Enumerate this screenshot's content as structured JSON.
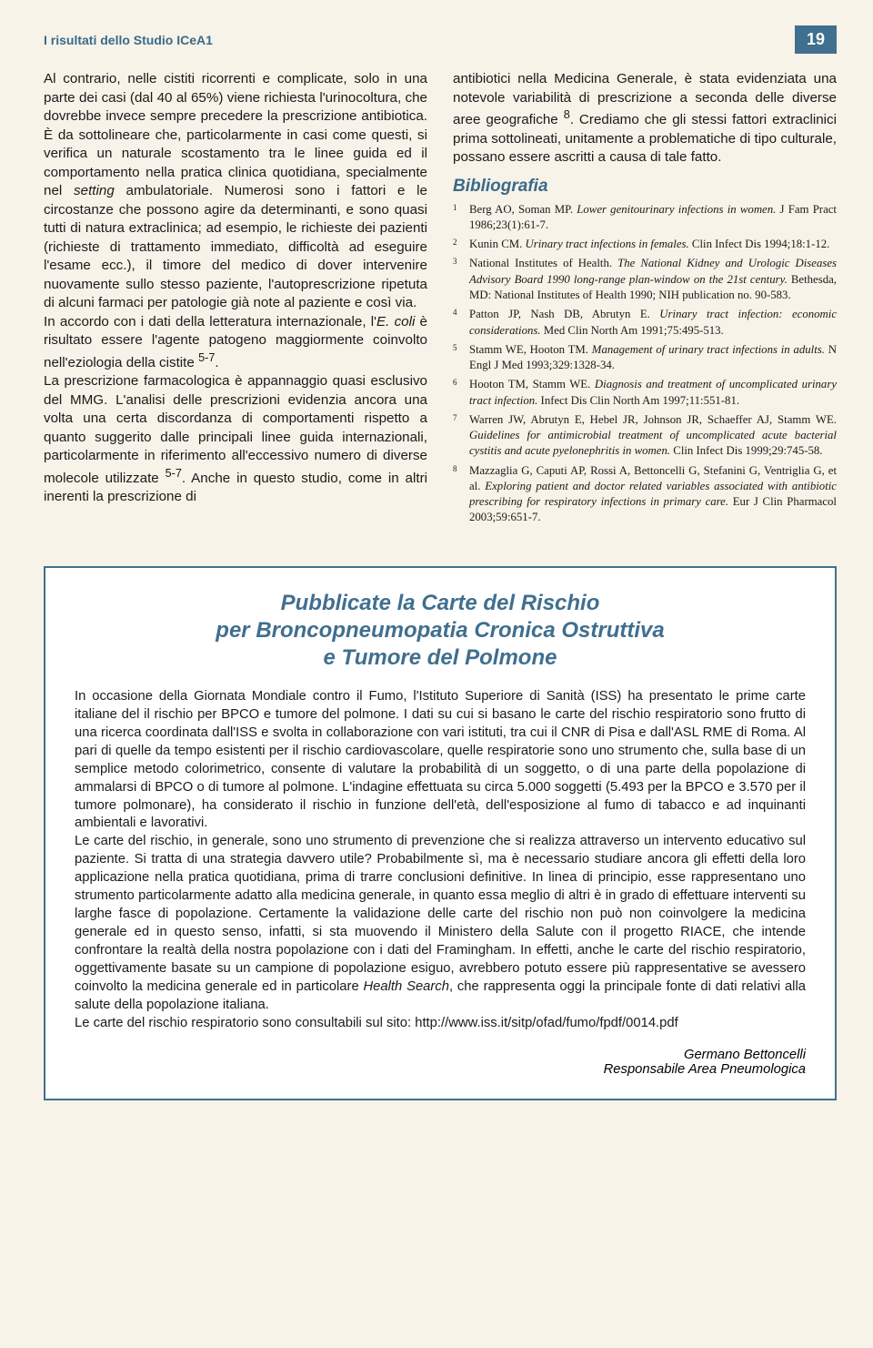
{
  "running_head": "I risultati dello Studio ICeA1",
  "page_number": "19",
  "left_col_html": "Al contrario, nelle cistiti ricorrenti e complicate, solo in una parte dei casi (dal 40 al 65%) viene richiesta l'urinocoltura, che dovrebbe invece sempre precedere la prescrizione antibiotica. È da sottolineare che, particolarmente in casi come questi, si verifica un naturale scostamento tra le linee guida ed il comportamento nella pratica clinica quotidiana, specialmente nel <em class='ital'>setting</em> ambulatoriale. Numerosi sono i fattori e le circostanze che possono agire da determinanti, e sono quasi tutti di natura extraclinica; ad esempio, le richieste dei pazienti (richieste di trattamento immediato, difficoltà ad eseguire l'esame ecc.), il timore del medico di dover intervenire nuovamente sullo stesso paziente, l'autoprescrizione ripetuta di alcuni farmaci per patologie già note al paziente e così via.<br>In accordo con i dati della letteratura internazionale, l'<em class='ital'>E. coli</em> è risultato essere l'agente patogeno maggiormente coinvolto nell'eziologia della cistite <sup>5-7</sup>.<br>La prescrizione farmacologica è appannaggio quasi esclusivo del MMG. L'analisi delle prescrizioni evidenzia ancora una volta una certa discordanza di comportamenti rispetto a quanto suggerito dalle principali linee guida internazionali, particolarmente in riferimento all'eccessivo numero di diverse molecole utilizzate <sup>5-7</sup>. Anche in questo studio, come in altri inerenti la prescrizione di",
  "right_col_intro_html": "antibiotici nella Medicina Generale, è stata evidenziata una notevole variabilità di prescrizione a seconda delle diverse aree geografiche <sup>8</sup>. Crediamo che gli stessi fattori extraclinici prima sottolineati, unitamente a problematiche di tipo culturale, possano essere ascritti a causa di tale fatto.",
  "bibliography_heading": "Bibliografia",
  "references": [
    "Berg AO, Soman MP. <em>Lower genitourinary infections in women.</em> J Fam Pract 1986;23(1):61-7.",
    "Kunin CM. <em>Urinary tract infections in females.</em> Clin Infect Dis 1994;18:1-12.",
    "National Institutes of Health. <em>The National Kidney and Urologic Diseases Advisory Board 1990 long-range plan-window on the 21st century.</em> Bethesda, MD: National Institutes of Health 1990; NIH publication no. 90-583.",
    "Patton JP, Nash DB, Abrutyn E. <em>Urinary tract infection: economic considerations.</em> Med Clin North Am 1991;75:495-513.",
    "Stamm WE, Hooton TM. <em>Management of urinary tract infections in adults.</em> N Engl J Med 1993;329:1328-34.",
    "Hooton TM, Stamm WE. <em>Diagnosis and treatment of uncomplicated urinary tract infection.</em> Infect Dis Clin North Am 1997;11:551-81.",
    "Warren JW, Abrutyn E, Hebel JR, Johnson JR, Schaeffer AJ, Stamm WE. <em>Guidelines for antimicrobial treatment of uncomplicated acute bacterial cystitis and acute pyelonephritis in women.</em> Clin Infect Dis 1999;29:745-58.",
    "Mazzaglia G, Caputi AP, Rossi A, Bettoncelli G, Stefanini G, Ventriglia G, et al. <em>Exploring patient and doctor related variables associated with antibiotic prescribing for respiratory infections in primary care.</em> Eur J Clin Pharmacol 2003;59:651-7."
  ],
  "box_title_html": "Pubblicate la Carte del Rischio<br>per Broncopneumopatia Cronica Ostruttiva<br>e Tumore del Polmone",
  "box_body_html": "In occasione della Giornata Mondiale contro il Fumo, l'Istituto Superiore di Sanità (ISS) ha presentato le prime carte italiane del il rischio per BPCO e tumore del polmone. I dati su cui si basano le carte del rischio respiratorio sono frutto di una ricerca coordinata dall'ISS e svolta in collaborazione con vari istituti, tra cui il CNR di Pisa e dall'ASL RME di Roma. Al pari di quelle da tempo esistenti per il rischio cardiovascolare, quelle respiratorie sono uno strumento che, sulla base di un semplice metodo colorimetrico, consente di valutare la probabilità di un soggetto, o di una parte della popolazione di ammalarsi di BPCO o di tumore al polmone. L'indagine effettuata su circa 5.000 soggetti (5.493 per la BPCO e 3.570 per il tumore polmonare), ha considerato il rischio in funzione dell'età, dell'esposizione al fumo di tabacco e ad inquinanti ambientali e lavorativi.<br>Le carte del rischio, in generale, sono uno strumento di prevenzione che si realizza attraverso un intervento educativo sul paziente. Si tratta di una strategia davvero utile? Probabilmente sì, ma è necessario studiare ancora gli effetti della loro applicazione nella pratica quotidiana, prima di trarre conclusioni definitive. In linea di principio, esse rappresentano uno strumento particolarmente adatto alla medicina generale, in quanto essa meglio di altri è in grado di effettuare interventi su larghe fasce di popolazione. Certamente la validazione delle carte del rischio non può non coinvolgere la medicina generale ed in questo senso, infatti, si sta muovendo il Ministero della Salute con il progetto RIACE, che intende confrontare la realtà della nostra popolazione con i dati del Framingham. In effetti, anche le carte del rischio respiratorio, oggettivamente basate su un campione di popolazione esiguo, avrebbero potuto essere più rappresentative se avessero coinvolto la medicina generale ed in particolare <em class='ital'>Health Search</em>, che rappresenta oggi la principale fonte di dati relativi alla salute della popolazione italiana.<br>Le carte del rischio respiratorio sono consultabili sul sito: http://www.iss.it/sitp/ofad/fumo/fpdf/0014.pdf",
  "box_author": "Germano Bettoncelli",
  "box_author_role": "Responsabile Area Pneumologica",
  "colors": {
    "page_bg": "#f7f3e8",
    "accent": "#406f8f",
    "heading": "#3a6a8a",
    "text": "#1a1a1a",
    "box_bg": "#ffffff"
  }
}
